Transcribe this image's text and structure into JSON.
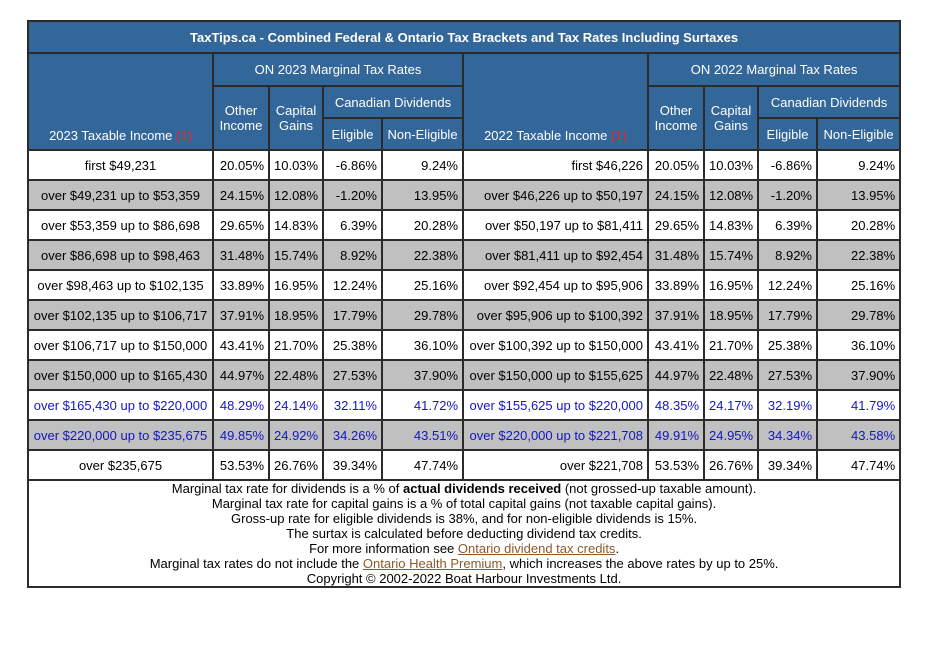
{
  "title": "TaxTips.ca - Combined Federal & Ontario Tax Brackets and Tax Rates Including Surtaxes",
  "left": {
    "group_header": "ON 2023 Marginal Tax Rates",
    "income_header": "2023 Taxable Income",
    "note_marker": "(1)"
  },
  "right": {
    "group_header": "ON 2022 Marginal Tax Rates",
    "income_header": "2022 Taxable Income",
    "note_marker": "(1)"
  },
  "columns": {
    "other_l1": "Other",
    "other_l2": "Income",
    "capital_l1": "Capital",
    "capital_l2": "Gains",
    "dividends": "Canadian Dividends",
    "eligible": "Eligible",
    "non_eligible": "Non-Eligible"
  },
  "rows": [
    {
      "inc23": "first $49,231",
      "o23": "20.05%",
      "c23": "10.03%",
      "e23": "-6.86%",
      "n23": "9.24%",
      "inc22": "first $46,226",
      "o22": "20.05%",
      "c22": "10.03%",
      "e22": "-6.86%",
      "n22": "9.24%"
    },
    {
      "inc23": "over $49,231 up to $53,359",
      "o23": "24.15%",
      "c23": "12.08%",
      "e23": "-1.20%",
      "n23": "13.95%",
      "inc22": "over $46,226 up to $50,197",
      "o22": "24.15%",
      "c22": "12.08%",
      "e22": "-1.20%",
      "n22": "13.95%"
    },
    {
      "inc23": "over $53,359 up to $86,698",
      "o23": "29.65%",
      "c23": "14.83%",
      "e23": "6.39%",
      "n23": "20.28%",
      "inc22": "over $50,197 up to $81,411",
      "o22": "29.65%",
      "c22": "14.83%",
      "e22": "6.39%",
      "n22": "20.28%"
    },
    {
      "inc23": "over $86,698 up to $98,463",
      "o23": "31.48%",
      "c23": "15.74%",
      "e23": "8.92%",
      "n23": "22.38%",
      "inc22": "over $81,411 up to $92,454",
      "o22": "31.48%",
      "c22": "15.74%",
      "e22": "8.92%",
      "n22": "22.38%"
    },
    {
      "inc23": "over $98,463 up to $102,135",
      "o23": "33.89%",
      "c23": "16.95%",
      "e23": "12.24%",
      "n23": "25.16%",
      "inc22": "over $92,454 up to $95,906",
      "o22": "33.89%",
      "c22": "16.95%",
      "e22": "12.24%",
      "n22": "25.16%"
    },
    {
      "inc23": "over $102,135 up to $106,717",
      "o23": "37.91%",
      "c23": "18.95%",
      "e23": "17.79%",
      "n23": "29.78%",
      "inc22": "over $95,906 up to $100,392",
      "o22": "37.91%",
      "c22": "18.95%",
      "e22": "17.79%",
      "n22": "29.78%"
    },
    {
      "inc23": "over $106,717 up to $150,000",
      "o23": "43.41%",
      "c23": "21.70%",
      "e23": "25.38%",
      "n23": "36.10%",
      "inc22": "over $100,392 up to $150,000",
      "o22": "43.41%",
      "c22": "21.70%",
      "e22": "25.38%",
      "n22": "36.10%"
    },
    {
      "inc23": "over $150,000 up to $165,430",
      "o23": "44.97%",
      "c23": "22.48%",
      "e23": "27.53%",
      "n23": "37.90%",
      "inc22": "over $150,000 up to $155,625",
      "o22": "44.97%",
      "c22": "22.48%",
      "e22": "27.53%",
      "n22": "37.90%"
    },
    {
      "inc23": "over $165,430 up to $220,000",
      "o23": "48.29%",
      "c23": "24.14%",
      "e23": "32.11%",
      "n23": "41.72%",
      "inc22": "over $155,625 up to $220,000",
      "o22": "48.35%",
      "c22": "24.17%",
      "e22": "32.19%",
      "n22": "41.79%"
    },
    {
      "inc23": "over $220,000 up to $235,675",
      "o23": "49.85%",
      "c23": "24.92%",
      "e23": "34.26%",
      "n23": "43.51%",
      "inc22": "over $220,000 up to $221,708",
      "o22": "49.91%",
      "c22": "24.95%",
      "e22": "34.34%",
      "n22": "43.58%"
    },
    {
      "inc23": "over $235,675",
      "o23": "53.53%",
      "c23": "26.76%",
      "e23": "39.34%",
      "n23": "47.74%",
      "inc22": "over $221,708",
      "o22": "53.53%",
      "c22": "26.76%",
      "e22": "39.34%",
      "n22": "47.74%"
    }
  ],
  "footer": {
    "line1_pre": "Marginal tax rate for dividends is a % of ",
    "line1_bold": "actual dividends received",
    "line1_post": " (not grossed-up taxable amount).",
    "line2": "Marginal tax rate for capital gains is a % of total capital gains (not taxable capital gains).",
    "line3": "Gross-up rate for eligible dividends is 38%, and for non-eligible dividends is 15%.",
    "line4": "The surtax is calculated before deducting dividend tax credits.",
    "line5_pre": "For more information see ",
    "line5_link": "Ontario dividend tax credits",
    "line5_post": ".",
    "line6_pre": "Marginal tax rates do not include the ",
    "line6_link": "Ontario Health Premium",
    "line6_post": ", which increases the above rates by up to 25%.",
    "line7": "Copyright © 2002-2022 Boat Harbour Investments Ltd."
  }
}
